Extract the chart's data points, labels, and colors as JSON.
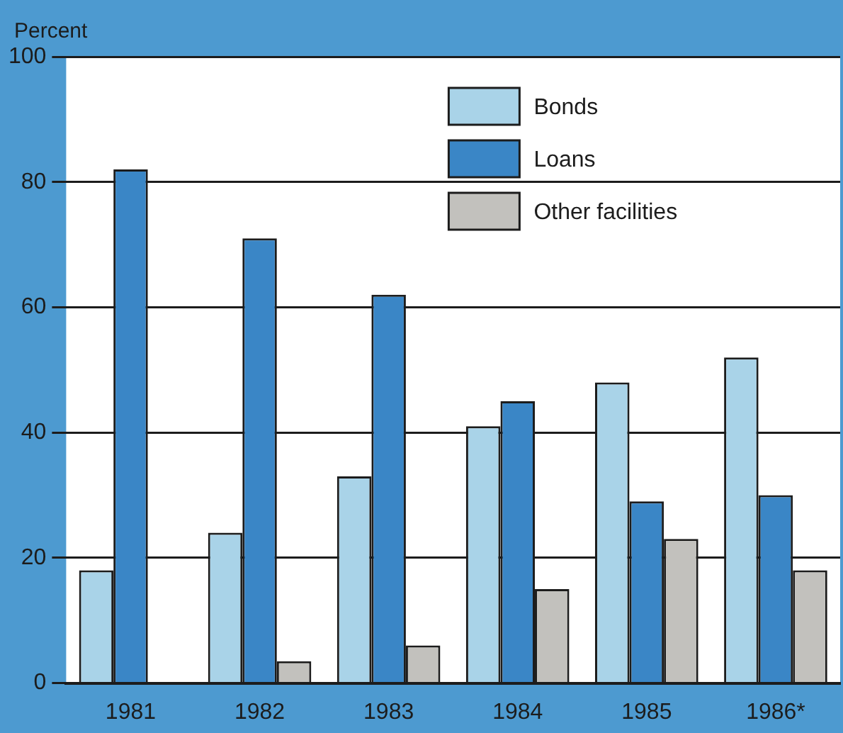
{
  "chart_data": {
    "type": "bar",
    "ylabel": "Percent",
    "categories": [
      "1981",
      "1982",
      "1983",
      "1984",
      "1985",
      "1986*"
    ],
    "series": [
      {
        "name": "Bonds",
        "color": "#a9d3e8",
        "values": [
          18,
          24,
          33,
          41,
          48,
          52
        ]
      },
      {
        "name": "Loans",
        "color": "#3a86c6",
        "values": [
          82,
          71,
          62,
          45,
          29,
          30
        ]
      },
      {
        "name": "Other facilities",
        "color": "#c2c1bd",
        "values": [
          0,
          3.5,
          6,
          15,
          23,
          18
        ]
      }
    ],
    "ylim": [
      0,
      100
    ],
    "yticks": [
      0,
      20,
      40,
      60,
      80,
      100
    ],
    "grid": "y",
    "legend": "top right"
  }
}
